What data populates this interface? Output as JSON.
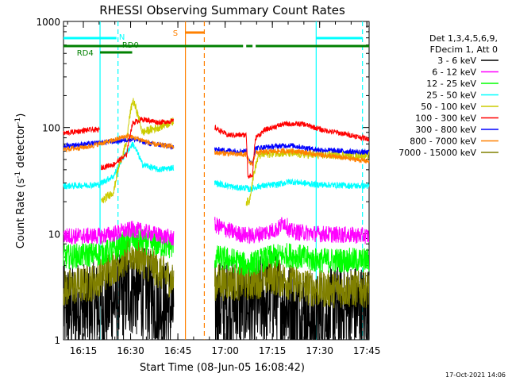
{
  "chart_data": {
    "type": "line",
    "title": "RHESSI Observing Summary Count Rates",
    "xlabel": "Start Time (08-Jun-05 16:08:42)",
    "ylabel_main": "Count Rate (s",
    "ylabel_sup1": "-1",
    "ylabel_mid": " detector",
    "ylabel_sup2": "-1",
    "ylabel_end": ")",
    "yscale": "log",
    "ylim": [
      1,
      1000
    ],
    "xlim_minutes": [
      0,
      97
    ],
    "x_ticks": [
      {
        "label": "16:15",
        "minute": 6.3
      },
      {
        "label": "16:30",
        "minute": 21.3
      },
      {
        "label": "16:45",
        "minute": 36.3
      },
      {
        "label": "17:00",
        "minute": 51.3
      },
      {
        "label": "17:15",
        "minute": 66.3
      },
      {
        "label": "17:30",
        "minute": 81.3
      },
      {
        "label": "17:45",
        "minute": 96.3
      }
    ],
    "y_ticks": [
      {
        "label": "1",
        "value": 1
      },
      {
        "label": "10",
        "value": 10
      },
      {
        "label": "100",
        "value": 100
      },
      {
        "label": "1000",
        "value": 1000
      }
    ],
    "legend_header": [
      "Det 1,3,4,5,6,9,",
      "FDecim 1, Att 0"
    ],
    "series": [
      {
        "name": "3 - 6 keV",
        "color": "#000000",
        "segments": [
          [
            0,
            2
          ],
          [
            [
              0,
              2
            ],
            [
              12,
              2
            ],
            [
              18,
              2.5
            ],
            [
              22,
              3
            ],
            [
              28,
              2.5
            ],
            [
              35,
              1.8
            ]
          ],
          [
            [
              48,
              2
            ],
            [
              55,
              2.2
            ],
            [
              60,
              2
            ],
            [
              66,
              2.6
            ],
            [
              72,
              2
            ],
            [
              80,
              1.5
            ],
            [
              90,
              2
            ],
            [
              97,
              1.8
            ]
          ]
        ],
        "noise": 0.45
      },
      {
        "name": "6 - 12 keV",
        "color": "#ff00ff",
        "segments": [
          [
            [
              0,
              9.5
            ],
            [
              12,
              9.5
            ],
            [
              16,
              10
            ],
            [
              22,
              11
            ],
            [
              28,
              10
            ],
            [
              35,
              9
            ]
          ],
          [
            [
              48,
              12
            ],
            [
              55,
              10
            ],
            [
              60,
              9.5
            ],
            [
              68,
              11
            ],
            [
              70,
              13
            ],
            [
              72,
              10.5
            ],
            [
              80,
              10
            ],
            [
              97,
              9.5
            ]
          ]
        ],
        "noise": 0.08
      },
      {
        "name": "12 - 25 keV",
        "color": "#00ff00",
        "segments": [
          [
            [
              0,
              6
            ],
            [
              12,
              6.5
            ],
            [
              16,
              7
            ],
            [
              22,
              9
            ],
            [
              28,
              8
            ],
            [
              35,
              7.5
            ]
          ],
          [
            [
              48,
              6
            ],
            [
              55,
              5.5
            ],
            [
              58,
              5
            ],
            [
              66,
              6
            ],
            [
              72,
              6.3
            ],
            [
              80,
              5.6
            ],
            [
              97,
              5.6
            ]
          ]
        ],
        "noise": 0.12
      },
      {
        "name": "25 - 50 keV",
        "color": "#00ffff",
        "segments": [
          [
            [
              0,
              28
            ],
            [
              11.5,
              29
            ],
            [
              12,
              30
            ],
            [
              16,
              35
            ],
            [
              22,
              70
            ],
            [
              25,
              45
            ],
            [
              30,
              40
            ],
            [
              35,
              42
            ]
          ],
          [
            [
              48,
              30
            ],
            [
              55,
              27
            ],
            [
              58,
              27
            ],
            [
              59,
              26
            ],
            [
              62,
              28
            ],
            [
              68,
              29
            ],
            [
              72,
              31
            ],
            [
              80,
              29
            ],
            [
              97,
              28
            ]
          ]
        ],
        "noise": 0.03
      },
      {
        "name": "50 - 100 keV",
        "color": "#cccc00",
        "segments": [
          [
            [
              12,
              20
            ],
            [
              16,
              25
            ],
            [
              20,
              70
            ],
            [
              22,
              180
            ],
            [
              25,
              90
            ],
            [
              30,
              100
            ],
            [
              35,
              115
            ]
          ],
          [
            [
              58,
              20
            ],
            [
              59,
              20
            ],
            [
              62,
              55
            ],
            [
              68,
              58
            ],
            [
              80,
              55
            ],
            [
              97,
              55
            ]
          ]
        ],
        "noise": 0.04
      },
      {
        "name": "100 - 300 keV",
        "color": "#ff0000",
        "segments": [
          [
            [
              0,
              88
            ],
            [
              8,
              95
            ],
            [
              11.5,
              95
            ]
          ],
          [
            [
              12,
              42
            ],
            [
              16,
              45
            ],
            [
              20,
              55
            ],
            [
              22,
              110
            ],
            [
              25,
              120
            ],
            [
              30,
              112
            ],
            [
              35,
              115
            ]
          ],
          [
            [
              48,
              100
            ],
            [
              52,
              85
            ],
            [
              58,
              85
            ],
            [
              58.5,
              35
            ],
            [
              60,
              35
            ],
            [
              61,
              80
            ],
            [
              64,
              95
            ],
            [
              70,
              108
            ],
            [
              76,
              108
            ],
            [
              82,
              95
            ],
            [
              97,
              78
            ]
          ]
        ],
        "noise": 0.025
      },
      {
        "name": "300 - 800 keV",
        "color": "#0000ff",
        "segments": [
          [
            [
              0,
              67
            ],
            [
              8,
              70
            ],
            [
              16,
              74
            ],
            [
              22,
              78
            ],
            [
              28,
              70
            ],
            [
              35,
              66
            ]
          ],
          [
            [
              48,
              62
            ],
            [
              55,
              60
            ],
            [
              58,
              60
            ],
            [
              59,
              47
            ],
            [
              60,
              47
            ],
            [
              61,
              64
            ],
            [
              66,
              66
            ],
            [
              72,
              68
            ],
            [
              80,
              62
            ],
            [
              97,
              58
            ]
          ]
        ],
        "noise": 0.025
      },
      {
        "name": "800 - 7000 keV",
        "color": "#ff8000",
        "segments": [
          [
            [
              0,
              62
            ],
            [
              8,
              66
            ],
            [
              16,
              76
            ],
            [
              20,
              83
            ],
            [
              24,
              78
            ],
            [
              28,
              70
            ],
            [
              35,
              66
            ]
          ],
          [
            [
              48,
              58
            ],
            [
              55,
              56
            ],
            [
              58,
              56
            ],
            [
              59,
              46
            ],
            [
              60,
              46
            ],
            [
              61,
              58
            ],
            [
              68,
              60
            ],
            [
              74,
              60
            ],
            [
              80,
              56
            ],
            [
              97,
              48
            ]
          ]
        ],
        "noise": 0.025
      },
      {
        "name": "7000 - 15000 keV",
        "color": "#808000",
        "segments": [
          [
            [
              0,
              3
            ],
            [
              10,
              3.5
            ],
            [
              16,
              5
            ],
            [
              22,
              6.5
            ],
            [
              28,
              5
            ],
            [
              35,
              3.5
            ]
          ],
          [
            [
              48,
              3.5
            ],
            [
              55,
              3.5
            ],
            [
              60,
              3.5
            ],
            [
              66,
              4
            ],
            [
              72,
              3.5
            ],
            [
              80,
              3
            ],
            [
              97,
              3
            ]
          ]
        ],
        "noise": 0.18
      }
    ],
    "vertical_lines": [
      {
        "minute": 11.6,
        "color": "#00ffff",
        "dashed": false
      },
      {
        "minute": 17.3,
        "color": "#00ffff",
        "dashed": true
      },
      {
        "minute": 38.7,
        "color": "#ff8000",
        "dashed": false
      },
      {
        "minute": 44.7,
        "color": "#ff8000",
        "dashed": true
      },
      {
        "minute": 80.2,
        "color": "#00ffff",
        "dashed": false
      },
      {
        "minute": 94.9,
        "color": "#00ffff",
        "dashed": true
      }
    ],
    "flag_bars": [
      {
        "label": "N",
        "color": "#00ffff",
        "spans": [
          [
            0,
            16.8
          ],
          [
            80.2,
            94.9
          ]
        ],
        "level": 0
      },
      {
        "label": "S",
        "color": "#ff8000",
        "spans": [
          [
            38.7,
            44.7
          ]
        ],
        "level": 1
      },
      {
        "label": "RD0",
        "color": "#008000",
        "spans": [
          [
            0,
            57
          ],
          [
            58,
            60
          ],
          [
            61,
            97
          ]
        ],
        "level": 2
      },
      {
        "label": "RD4",
        "color": "#008000",
        "spans": [
          [
            11.6,
            21.8
          ]
        ],
        "level": 3
      }
    ],
    "footer_date": "17-Oct-2021 14:06"
  }
}
